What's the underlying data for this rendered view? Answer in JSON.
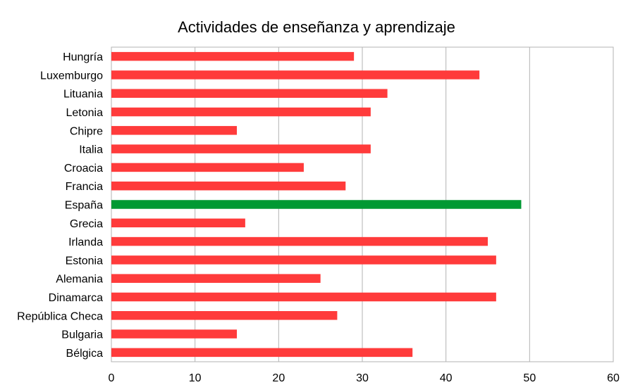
{
  "chart_data": {
    "type": "bar",
    "orientation": "horizontal",
    "title": "Actividades de enseñanza y aprendizaje",
    "xlabel": "",
    "ylabel": "",
    "xlim": [
      0,
      60
    ],
    "xticks": [
      0,
      10,
      20,
      30,
      40,
      50,
      60
    ],
    "grid": true,
    "legend": "none",
    "categories": [
      "Hungría",
      "Luxemburgo",
      "Lituania",
      "Letonia",
      "Chipre",
      "Italia",
      "Croacia",
      "Francia",
      "España",
      "Grecia",
      "Irlanda",
      "Estonia",
      "Alemania",
      "Dinamarca",
      "República Checa",
      "Bulgaria",
      "Bélgica"
    ],
    "values": [
      29,
      44,
      33,
      31,
      15,
      31,
      23,
      28,
      49,
      16,
      45,
      46,
      25,
      46,
      27,
      15,
      36
    ],
    "bar_color": "#ff3b3b",
    "highlight_category": "España",
    "highlight_color": "#009933",
    "grid_color": "#b3b3b3"
  }
}
